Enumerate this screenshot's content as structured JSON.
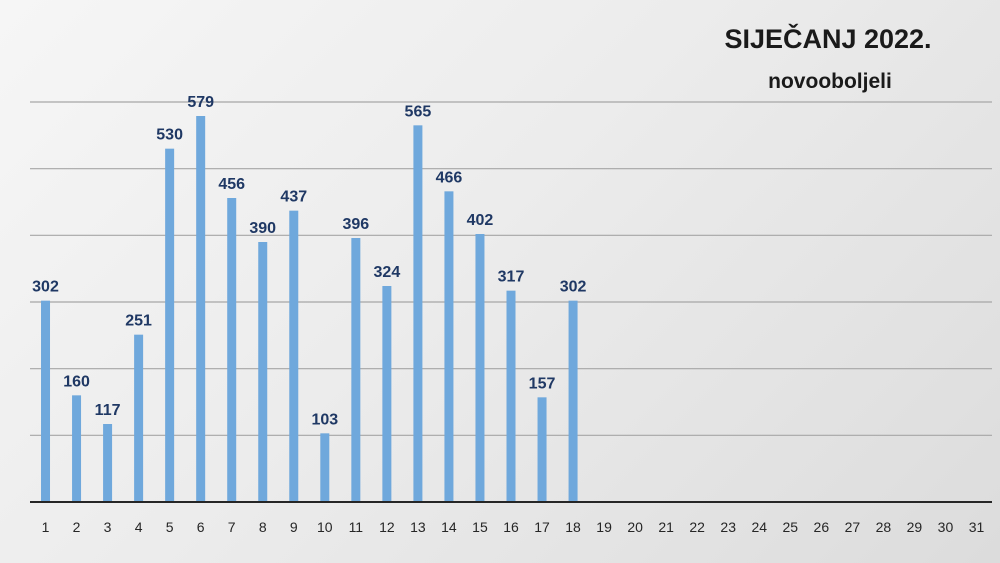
{
  "chart_data": {
    "type": "bar",
    "title": "SIJEČANJ 2022.",
    "subtitle": "novooboljeli",
    "categories": [
      "1",
      "2",
      "3",
      "4",
      "5",
      "6",
      "7",
      "8",
      "9",
      "10",
      "11",
      "12",
      "13",
      "14",
      "15",
      "16",
      "17",
      "18",
      "19",
      "20",
      "21",
      "22",
      "23",
      "24",
      "25",
      "26",
      "27",
      "28",
      "29",
      "30",
      "31"
    ],
    "series": [
      {
        "values": [
          302,
          160,
          117,
          251,
          530,
          579,
          456,
          390,
          437,
          103,
          396,
          324,
          565,
          466,
          402,
          317,
          157,
          302,
          null,
          null,
          null,
          null,
          null,
          null,
          null,
          null,
          null,
          null,
          null,
          null,
          null
        ]
      }
    ],
    "ylim": [
      0,
      600
    ],
    "gridlines": [
      100,
      200,
      300,
      400,
      500,
      600
    ],
    "grid": true,
    "legend": "none",
    "colors": {
      "bar": "#6fa8dc",
      "label": "#1f3864",
      "title": "#1a1a1a",
      "grid": "#a6a6a6",
      "axis": "#262626"
    }
  }
}
